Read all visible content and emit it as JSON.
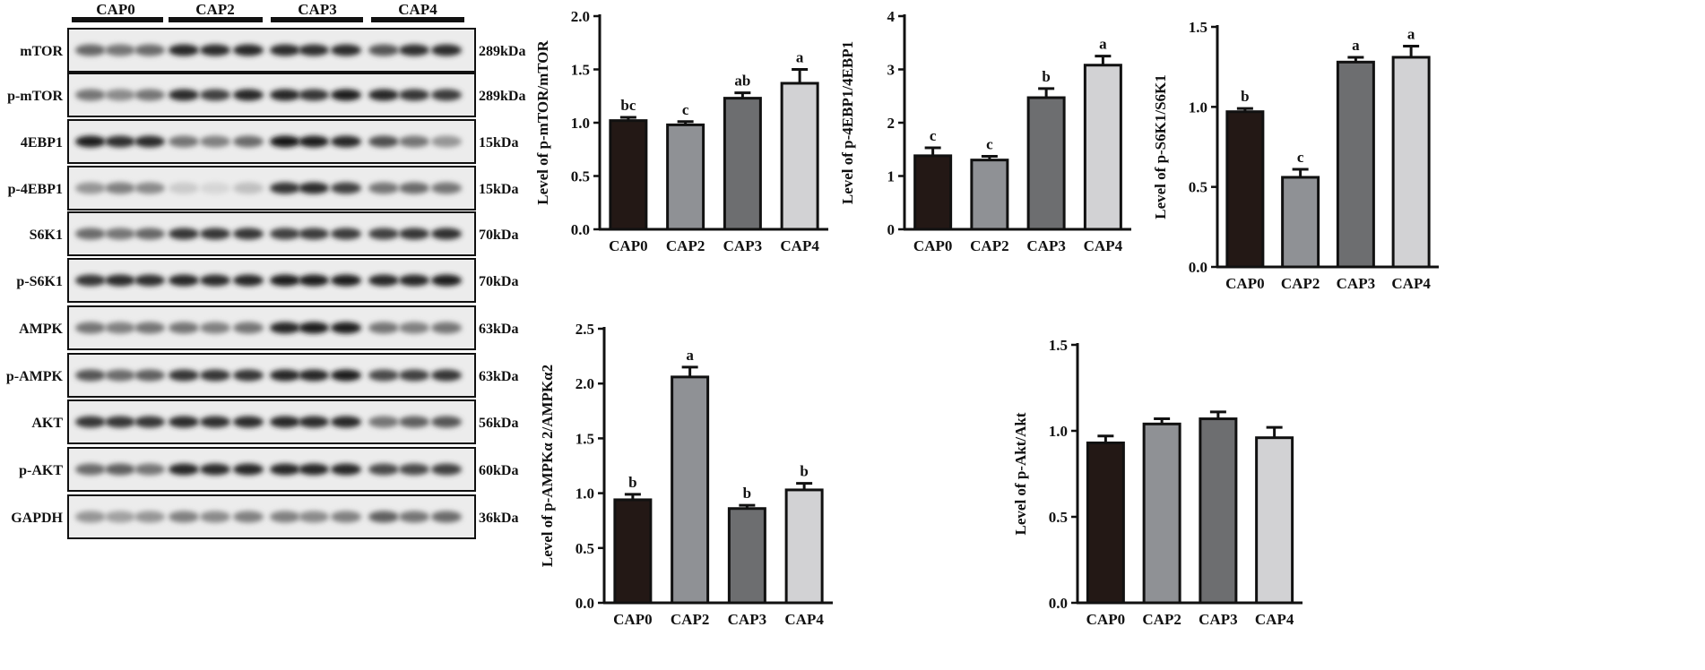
{
  "blot": {
    "groups": [
      "CAP0",
      "CAP2",
      "CAP3",
      "CAP4"
    ],
    "rows": [
      {
        "label": "mTOR",
        "kda": "289kDa",
        "int": [
          0.62,
          0.55,
          0.6,
          0.92,
          0.9,
          0.92,
          0.9,
          0.88,
          0.9,
          0.7,
          0.88,
          0.9
        ]
      },
      {
        "label": "p-mTOR",
        "kda": "289kDa",
        "int": [
          0.55,
          0.45,
          0.55,
          0.9,
          0.8,
          0.92,
          0.92,
          0.85,
          0.95,
          0.92,
          0.85,
          0.82
        ]
      },
      {
        "label": "4EBP1",
        "kda": "15kDa",
        "int": [
          0.95,
          0.88,
          0.9,
          0.55,
          0.5,
          0.6,
          0.98,
          0.95,
          0.92,
          0.72,
          0.55,
          0.4
        ]
      },
      {
        "label": "p-4EBP1",
        "kda": "15kDa",
        "int": [
          0.4,
          0.5,
          0.45,
          0.15,
          0.1,
          0.2,
          0.85,
          0.9,
          0.8,
          0.55,
          0.6,
          0.55
        ]
      },
      {
        "label": "S6K1",
        "kda": "70kDa",
        "int": [
          0.6,
          0.55,
          0.62,
          0.85,
          0.85,
          0.85,
          0.8,
          0.82,
          0.82,
          0.8,
          0.85,
          0.88
        ]
      },
      {
        "label": "p-S6K1",
        "kda": "70kDa",
        "int": [
          0.85,
          0.9,
          0.88,
          0.92,
          0.9,
          0.92,
          0.95,
          0.95,
          0.95,
          0.92,
          0.92,
          0.95
        ]
      },
      {
        "label": "AMPK",
        "kda": "63kDa",
        "int": [
          0.55,
          0.5,
          0.55,
          0.55,
          0.5,
          0.55,
          0.92,
          0.95,
          0.95,
          0.55,
          0.5,
          0.55
        ]
      },
      {
        "label": "p-AMPK",
        "kda": "63kDa",
        "int": [
          0.7,
          0.6,
          0.65,
          0.85,
          0.85,
          0.85,
          0.92,
          0.92,
          0.95,
          0.75,
          0.8,
          0.85
        ]
      },
      {
        "label": "AKT",
        "kda": "56kDa",
        "int": [
          0.85,
          0.85,
          0.85,
          0.9,
          0.88,
          0.9,
          0.92,
          0.9,
          0.92,
          0.55,
          0.65,
          0.7
        ]
      },
      {
        "label": "p-AKT",
        "kda": "60kDa",
        "int": [
          0.6,
          0.65,
          0.55,
          0.92,
          0.9,
          0.92,
          0.92,
          0.92,
          0.92,
          0.75,
          0.75,
          0.8
        ]
      },
      {
        "label": "GAPDH",
        "kda": "36kDa",
        "int": [
          0.4,
          0.35,
          0.4,
          0.5,
          0.45,
          0.5,
          0.5,
          0.45,
          0.5,
          0.65,
          0.55,
          0.6
        ]
      }
    ]
  },
  "colors": {
    "bars": [
      "#231815",
      "#8f9195",
      "#6d6e70",
      "#d2d2d4"
    ]
  },
  "chart_data": [
    {
      "type": "bar",
      "ylabel": "Level of p-mTOR/mTOR",
      "categories": [
        "CAP0",
        "CAP2",
        "CAP3",
        "CAP4"
      ],
      "values": [
        1.02,
        0.98,
        1.23,
        1.37
      ],
      "errors": [
        0.03,
        0.03,
        0.05,
        0.13
      ],
      "letters": [
        "bc",
        "c",
        "ab",
        "a"
      ],
      "ylim": [
        0,
        2.0
      ],
      "yticks": [
        "0.0",
        "0.5",
        "1.0",
        "1.5",
        "2.0"
      ]
    },
    {
      "type": "bar",
      "ylabel": "Level of p-4EBP1/4EBP1",
      "categories": [
        "CAP0",
        "CAP2",
        "CAP3",
        "CAP4"
      ],
      "values": [
        1.38,
        1.3,
        2.47,
        3.08
      ],
      "errors": [
        0.15,
        0.07,
        0.17,
        0.17
      ],
      "letters": [
        "c",
        "c",
        "b",
        "a"
      ],
      "ylim": [
        0,
        4
      ],
      "yticks": [
        "0",
        "1",
        "2",
        "3",
        "4"
      ]
    },
    {
      "type": "bar",
      "ylabel": "Level of p-S6K1/S6K1",
      "categories": [
        "CAP0",
        "CAP2",
        "CAP3",
        "CAP4"
      ],
      "values": [
        0.97,
        0.56,
        1.28,
        1.31
      ],
      "errors": [
        0.02,
        0.05,
        0.03,
        0.07
      ],
      "letters": [
        "b",
        "c",
        "a",
        "a"
      ],
      "ylim": [
        0,
        1.5
      ],
      "yticks": [
        "0.0",
        "0.5",
        "1.0",
        "1.5"
      ]
    },
    {
      "type": "bar",
      "ylabel": "Level of p-AMPKα 2/AMPKα2",
      "categories": [
        "CAP0",
        "CAP2",
        "CAP3",
        "CAP4"
      ],
      "values": [
        0.94,
        2.06,
        0.86,
        1.03
      ],
      "errors": [
        0.05,
        0.09,
        0.03,
        0.06
      ],
      "letters": [
        "b",
        "a",
        "b",
        "b"
      ],
      "ylim": [
        0,
        2.5
      ],
      "yticks": [
        "0.0",
        "0.5",
        "1.0",
        "1.5",
        "2.0",
        "2.5"
      ]
    },
    {
      "type": "bar",
      "ylabel": "Level of p-Akt/Akt",
      "categories": [
        "CAP0",
        "CAP2",
        "CAP3",
        "CAP4"
      ],
      "values": [
        0.93,
        1.04,
        1.07,
        0.96
      ],
      "errors": [
        0.04,
        0.03,
        0.04,
        0.06
      ],
      "letters": [
        "",
        "",
        "",
        ""
      ],
      "ylim": [
        0,
        1.5
      ],
      "yticks": [
        "0.0",
        "0.5",
        "1.0",
        "1.5"
      ]
    }
  ]
}
